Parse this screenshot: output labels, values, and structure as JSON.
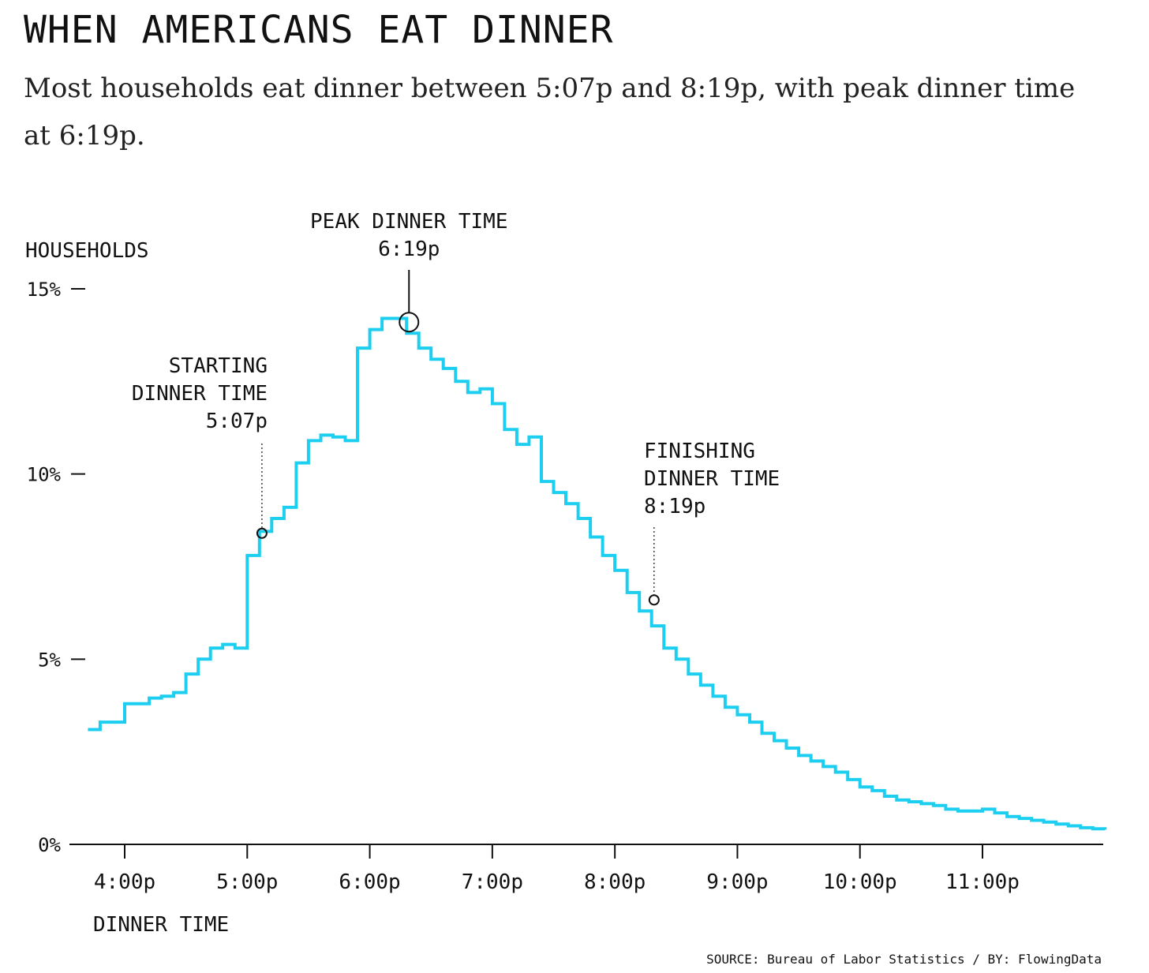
{
  "title": "WHEN AMERICANS EAT DINNER",
  "subtitle": "Most households eat dinner between 5:07p and 8:19p, with peak dinner time at 6:19p.",
  "source": "SOURCE: Bureau of Labor Statistics / BY: FlowingData",
  "colors": {
    "line": "#1ccff0",
    "ink": "#111111"
  },
  "chart_data": {
    "type": "line",
    "title": "WHEN AMERICANS EAT DINNER",
    "xlabel": "DINNER TIME",
    "ylabel": "HOUSEHOLDS",
    "xlim": [
      15.57,
      24.0
    ],
    "ylim": [
      0,
      15
    ],
    "x_ticks": [
      {
        "x": 16,
        "label": "4:00p"
      },
      {
        "x": 17,
        "label": "5:00p"
      },
      {
        "x": 18,
        "label": "6:00p"
      },
      {
        "x": 19,
        "label": "7:00p"
      },
      {
        "x": 20,
        "label": "8:00p"
      },
      {
        "x": 21,
        "label": "9:00p"
      },
      {
        "x": 22,
        "label": "10:00p"
      },
      {
        "x": 23,
        "label": "11:00p"
      }
    ],
    "y_ticks": [
      {
        "y": 0,
        "label": "0%"
      },
      {
        "y": 5,
        "label": "5%"
      },
      {
        "y": 10,
        "label": "10%"
      },
      {
        "y": 15,
        "label": "15%"
      }
    ],
    "grid": false,
    "series": [
      {
        "x": [
          15.7,
          15.8,
          15.9,
          16.0,
          16.1,
          16.2,
          16.3,
          16.4,
          16.5,
          16.6,
          16.7,
          16.8,
          16.9,
          17.0,
          17.1,
          17.2,
          17.3,
          17.4,
          17.5,
          17.6,
          17.7,
          17.8,
          17.9,
          18.0,
          18.1,
          18.2,
          18.3,
          18.4,
          18.5,
          18.6,
          18.7,
          18.8,
          18.9,
          19.0,
          19.1,
          19.2,
          19.3,
          19.4,
          19.5,
          19.6,
          19.7,
          19.8,
          19.9,
          20.0,
          20.1,
          20.2,
          20.3,
          20.4,
          20.5,
          20.6,
          20.7,
          20.8,
          20.9,
          21.0,
          21.1,
          21.2,
          21.3,
          21.4,
          21.5,
          21.6,
          21.7,
          21.8,
          21.9,
          22.0,
          22.1,
          22.2,
          22.3,
          22.4,
          22.5,
          22.6,
          22.7,
          22.8,
          22.9,
          23.0,
          23.1,
          23.2,
          23.3,
          23.4,
          23.5,
          23.6,
          23.7,
          23.8,
          23.9,
          24.0
        ],
        "y": [
          3.1,
          3.3,
          3.3,
          3.8,
          3.8,
          3.95,
          4.0,
          4.1,
          4.6,
          5.0,
          5.3,
          5.4,
          5.3,
          7.8,
          8.45,
          8.8,
          9.1,
          10.3,
          10.9,
          11.05,
          11.0,
          10.9,
          13.4,
          13.9,
          14.2,
          14.2,
          13.8,
          13.4,
          13.1,
          12.85,
          12.5,
          12.2,
          12.3,
          11.9,
          11.2,
          10.8,
          11.0,
          9.8,
          9.5,
          9.2,
          8.8,
          8.3,
          7.8,
          7.4,
          6.8,
          6.3,
          5.9,
          5.3,
          5.0,
          4.6,
          4.3,
          4.0,
          3.7,
          3.5,
          3.3,
          3.0,
          2.8,
          2.6,
          2.4,
          2.25,
          2.1,
          1.95,
          1.75,
          1.55,
          1.45,
          1.3,
          1.2,
          1.15,
          1.1,
          1.05,
          0.95,
          0.9,
          0.9,
          0.95,
          0.85,
          0.75,
          0.7,
          0.65,
          0.6,
          0.55,
          0.5,
          0.45,
          0.42,
          0.4
        ]
      }
    ],
    "annotations": [
      {
        "x": 17.12,
        "y": 8.4,
        "lines": [
          "STARTING",
          "DINNER TIME",
          "5:07p"
        ],
        "align": "right"
      },
      {
        "x": 18.32,
        "y": 14.1,
        "lines": [
          "PEAK DINNER TIME",
          "6:19p"
        ],
        "align": "center"
      },
      {
        "x": 20.32,
        "y": 6.6,
        "lines": [
          "FINISHING",
          "DINNER TIME",
          "8:19p"
        ],
        "align": "left"
      }
    ]
  }
}
